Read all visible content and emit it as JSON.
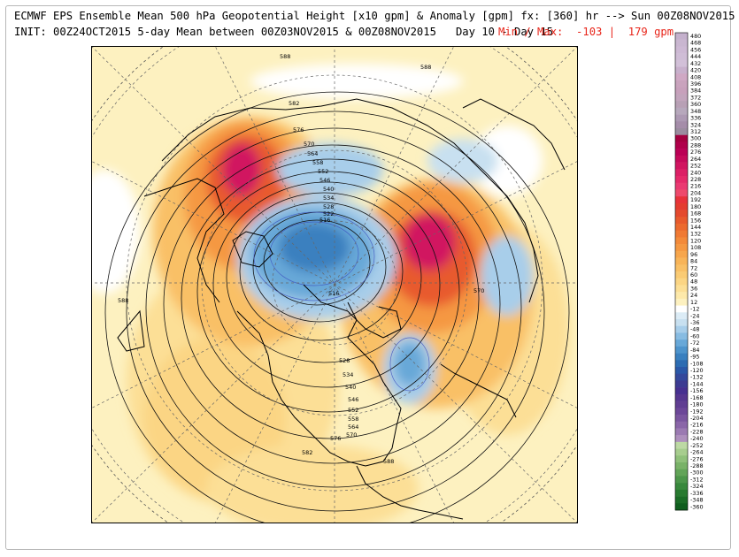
{
  "header": {
    "title": "ECMWF EPS Ensemble Mean 500 hPa Geopotential Height [x10 gpm] & Anomaly [gpm] fx: [360] hr --> Sun 00Z08NOV2015",
    "init": "INIT: 00Z24OCT2015 5-day Mean between 00Z03NOV2015 & 00Z08NOV2015   Day 10 - Day 15",
    "minmax": "Min / Max:  -103 |  179 gpm"
  },
  "map": {
    "contour_labels": [
      "588",
      "582",
      "576",
      "570",
      "564",
      "558",
      "552",
      "546",
      "540",
      "534",
      "528",
      "522",
      "516",
      "516",
      "528",
      "534",
      "540",
      "546",
      "552",
      "558",
      "564",
      "570",
      "576",
      "582",
      "588",
      "588",
      "570",
      "588"
    ]
  },
  "colorbar": {
    "levels": [
      "480",
      "468",
      "456",
      "444",
      "432",
      "420",
      "408",
      "396",
      "384",
      "372",
      "360",
      "348",
      "336",
      "324",
      "312",
      "300",
      "288",
      "276",
      "264",
      "252",
      "240",
      "228",
      "216",
      "204",
      "192",
      "180",
      "168",
      "156",
      "144",
      "132",
      "120",
      "108",
      "96",
      "84",
      "72",
      "60",
      "48",
      "36",
      "24",
      "12",
      "-12",
      "-24",
      "-36",
      "-48",
      "-60",
      "-72",
      "-84",
      "-95",
      "-108",
      "-120",
      "-132",
      "-144",
      "-156",
      "-168",
      "-180",
      "-192",
      "-204",
      "-216",
      "-228",
      "-240",
      "-252",
      "-264",
      "-276",
      "-288",
      "-300",
      "-312",
      "-324",
      "-336",
      "-348",
      "-360"
    ],
    "colors": [
      "#c4b0cc",
      "#c9b6d0",
      "#cdb9d4",
      "#cfbdd6",
      "#d2c0d8",
      "#c8b0cc",
      "#cfa8c4",
      "#c9a3bd",
      "#c7a0bb",
      "#c2a4bc",
      "#b8a0b5",
      "#b7a8bc",
      "#ad99b3",
      "#a58da9",
      "#9b8c9f",
      "#a50040",
      "#b0004b",
      "#bb0055",
      "#c60a5a",
      "#d11560",
      "#dc2066",
      "#e52a6a",
      "#ea3a72",
      "#ee4a6c",
      "#e8323a",
      "#e43c30",
      "#e44a2e",
      "#e85a2d",
      "#ec6a2f",
      "#f07a34",
      "#f38a3a",
      "#f59842",
      "#f7a64c",
      "#f8b458",
      "#f9c066",
      "#facb74",
      "#fbd584",
      "#fcdf96",
      "#fde9aa",
      "#fdf1c0",
      "#ffffff",
      "#dcecf6",
      "#c8e0f0",
      "#a8ceea",
      "#88bce2",
      "#68a8d8",
      "#4e94cc",
      "#3a80bf",
      "#2c6cb2",
      "#2a58a8",
      "#34499c",
      "#3c3b92",
      "#463090",
      "#55368f",
      "#603e92",
      "#6c4798",
      "#7a559f",
      "#8a66a8",
      "#9b7ab2",
      "#ae90bd",
      "#bdd9a4",
      "#a7cd8e",
      "#8fc07a",
      "#79b268",
      "#62a458",
      "#4c964a",
      "#38883c",
      "#287a30",
      "#1a6c26",
      "#0f5e1e"
    ]
  }
}
